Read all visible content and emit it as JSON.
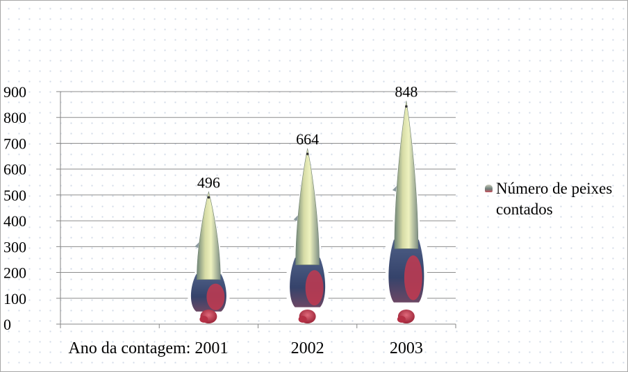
{
  "chart_data": {
    "type": "bar",
    "title": "",
    "xlabel": "",
    "ylabel": "",
    "categories": [
      "Ano da contagem: 2001",
      "2002",
      "2003"
    ],
    "series": [
      {
        "name": "Número de peixes contados",
        "values": [
          496,
          664,
          848
        ]
      }
    ],
    "ylim": [
      0,
      900
    ],
    "yticks": [
      0,
      100,
      200,
      300,
      400,
      500,
      600,
      700,
      800,
      900
    ],
    "grid": true,
    "legend": "right",
    "bar_style": "fish-image",
    "colors": {
      "grid": "#8c8c8c",
      "axis": "#868686",
      "fish_body_light": "#eaefb5",
      "fish_body_mid": "#9aa7a0",
      "fish_dark": "#3a4a6e",
      "fish_tail": "#c23a50"
    }
  }
}
